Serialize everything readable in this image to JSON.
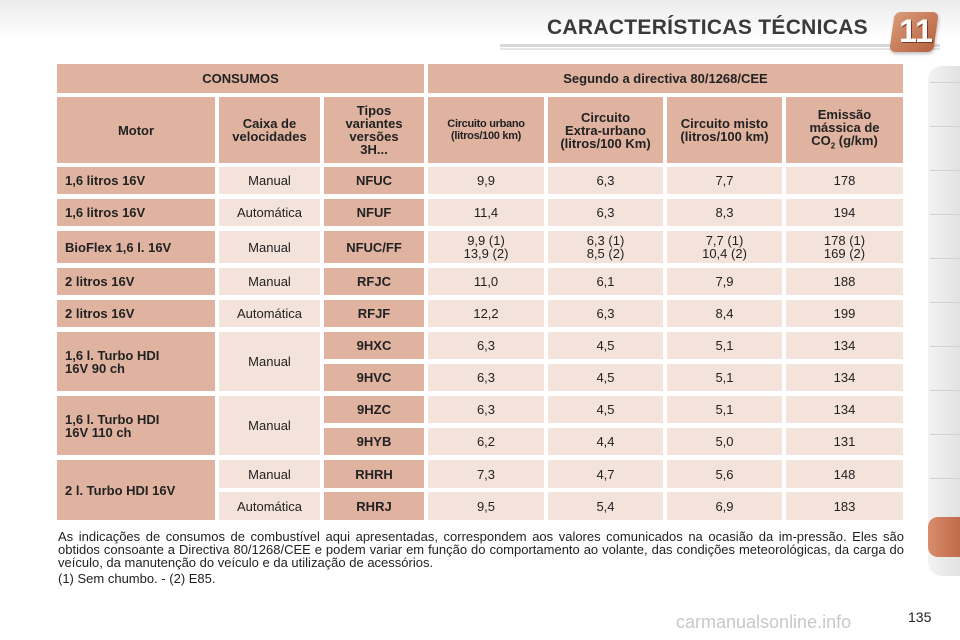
{
  "header": {
    "title": "CARACTERÍSTICAS TÉCNICAS",
    "chapter": "11"
  },
  "table": {
    "group_left": "CONSUMOS",
    "group_right": "Segundo a directiva 80/1268/CEE",
    "col_motor": "Motor",
    "col_caixa": [
      "Caixa de",
      "velocidades"
    ],
    "col_tipos": [
      "Tipos",
      "variantes",
      "versões",
      "3H..."
    ],
    "col_urbano": [
      "Circuito urbano",
      "(litros/100 km)"
    ],
    "col_extra": [
      "Circuito",
      "Extra-urbano",
      "(litros/100 Km)"
    ],
    "col_misto": [
      "Circuito misto",
      "(litros/100 km)"
    ],
    "col_emissao": [
      "Emissão",
      "mássica de",
      "CO",
      "2",
      " (g/km)"
    ],
    "rows": [
      {
        "motor": "1,6 litros 16V",
        "caixa": "Manual",
        "tipo": "NFUC",
        "urbano": "9,9",
        "extra": "6,3",
        "misto": "7,7",
        "co2": "178"
      },
      {
        "motor": "1,6 litros 16V",
        "caixa": "Automática",
        "tipo": "NFUF",
        "urbano": "11,4",
        "extra": "6,3",
        "misto": "8,3",
        "co2": "194"
      },
      {
        "motor": "BioFlex 1,6 l. 16V",
        "caixa": "Manual",
        "tipo": "NFUC/FF",
        "urbano": [
          "9,9 (1)",
          "13,9 (2)"
        ],
        "extra": [
          "6,3 (1)",
          "8,5 (2)"
        ],
        "misto": [
          "7,7 (1)",
          "10,4 (2)"
        ],
        "co2": [
          "178 (1)",
          "169 (2)"
        ]
      },
      {
        "motor": "2 litros 16V",
        "caixa": "Manual",
        "tipo": "RFJC",
        "urbano": "11,0",
        "extra": "6,1",
        "misto": "7,9",
        "co2": "188"
      },
      {
        "motor": "2 litros 16V",
        "caixa": "Automática",
        "tipo": "RFJF",
        "urbano": "12,2",
        "extra": "6,3",
        "misto": "8,4",
        "co2": "199"
      },
      {
        "motor": [
          "1,6 l. Turbo HDI",
          "16V 90 ch"
        ],
        "caixa": "Manual",
        "tipos": [
          {
            "tipo": "9HXC",
            "urbano": "6,3",
            "extra": "4,5",
            "misto": "5,1",
            "co2": "134"
          },
          {
            "tipo": "9HVC",
            "urbano": "6,3",
            "extra": "4,5",
            "misto": "5,1",
            "co2": "134"
          }
        ]
      },
      {
        "motor": [
          "1,6 l. Turbo HDI",
          "16V 110 ch"
        ],
        "caixa": "Manual",
        "tipos": [
          {
            "tipo": "9HZC",
            "urbano": "6,3",
            "extra": "4,5",
            "misto": "5,1",
            "co2": "134"
          },
          {
            "tipo": "9HYB",
            "urbano": "6,2",
            "extra": "4,4",
            "misto": "5,0",
            "co2": "131"
          }
        ]
      },
      {
        "motor": "2 l. Turbo HDI 16V",
        "variants": [
          {
            "caixa": "Manual",
            "tipo": "RHRH",
            "urbano": "7,3",
            "extra": "4,7",
            "misto": "5,6",
            "co2": "148"
          },
          {
            "caixa": "Automática",
            "tipo": "RHRJ",
            "urbano": "9,5",
            "extra": "5,4",
            "misto": "6,9",
            "co2": "183"
          }
        ]
      }
    ]
  },
  "notes": "As indicações de consumos de combustível aqui apresentadas, correspondem aos valores comunicados na ocasião da im-pressão. Eles são obtidos consoante a Directiva 80/1268/CEE e podem variar em função do comportamento ao volante, das condições meteorológicas, da carga do veículo, da manutenção do veículo e da utilização de acessórios.",
  "footnote": "(1) Sem chumbo. - (2) E85.",
  "page_number": "135",
  "watermark": "carmanualsonline.info"
}
